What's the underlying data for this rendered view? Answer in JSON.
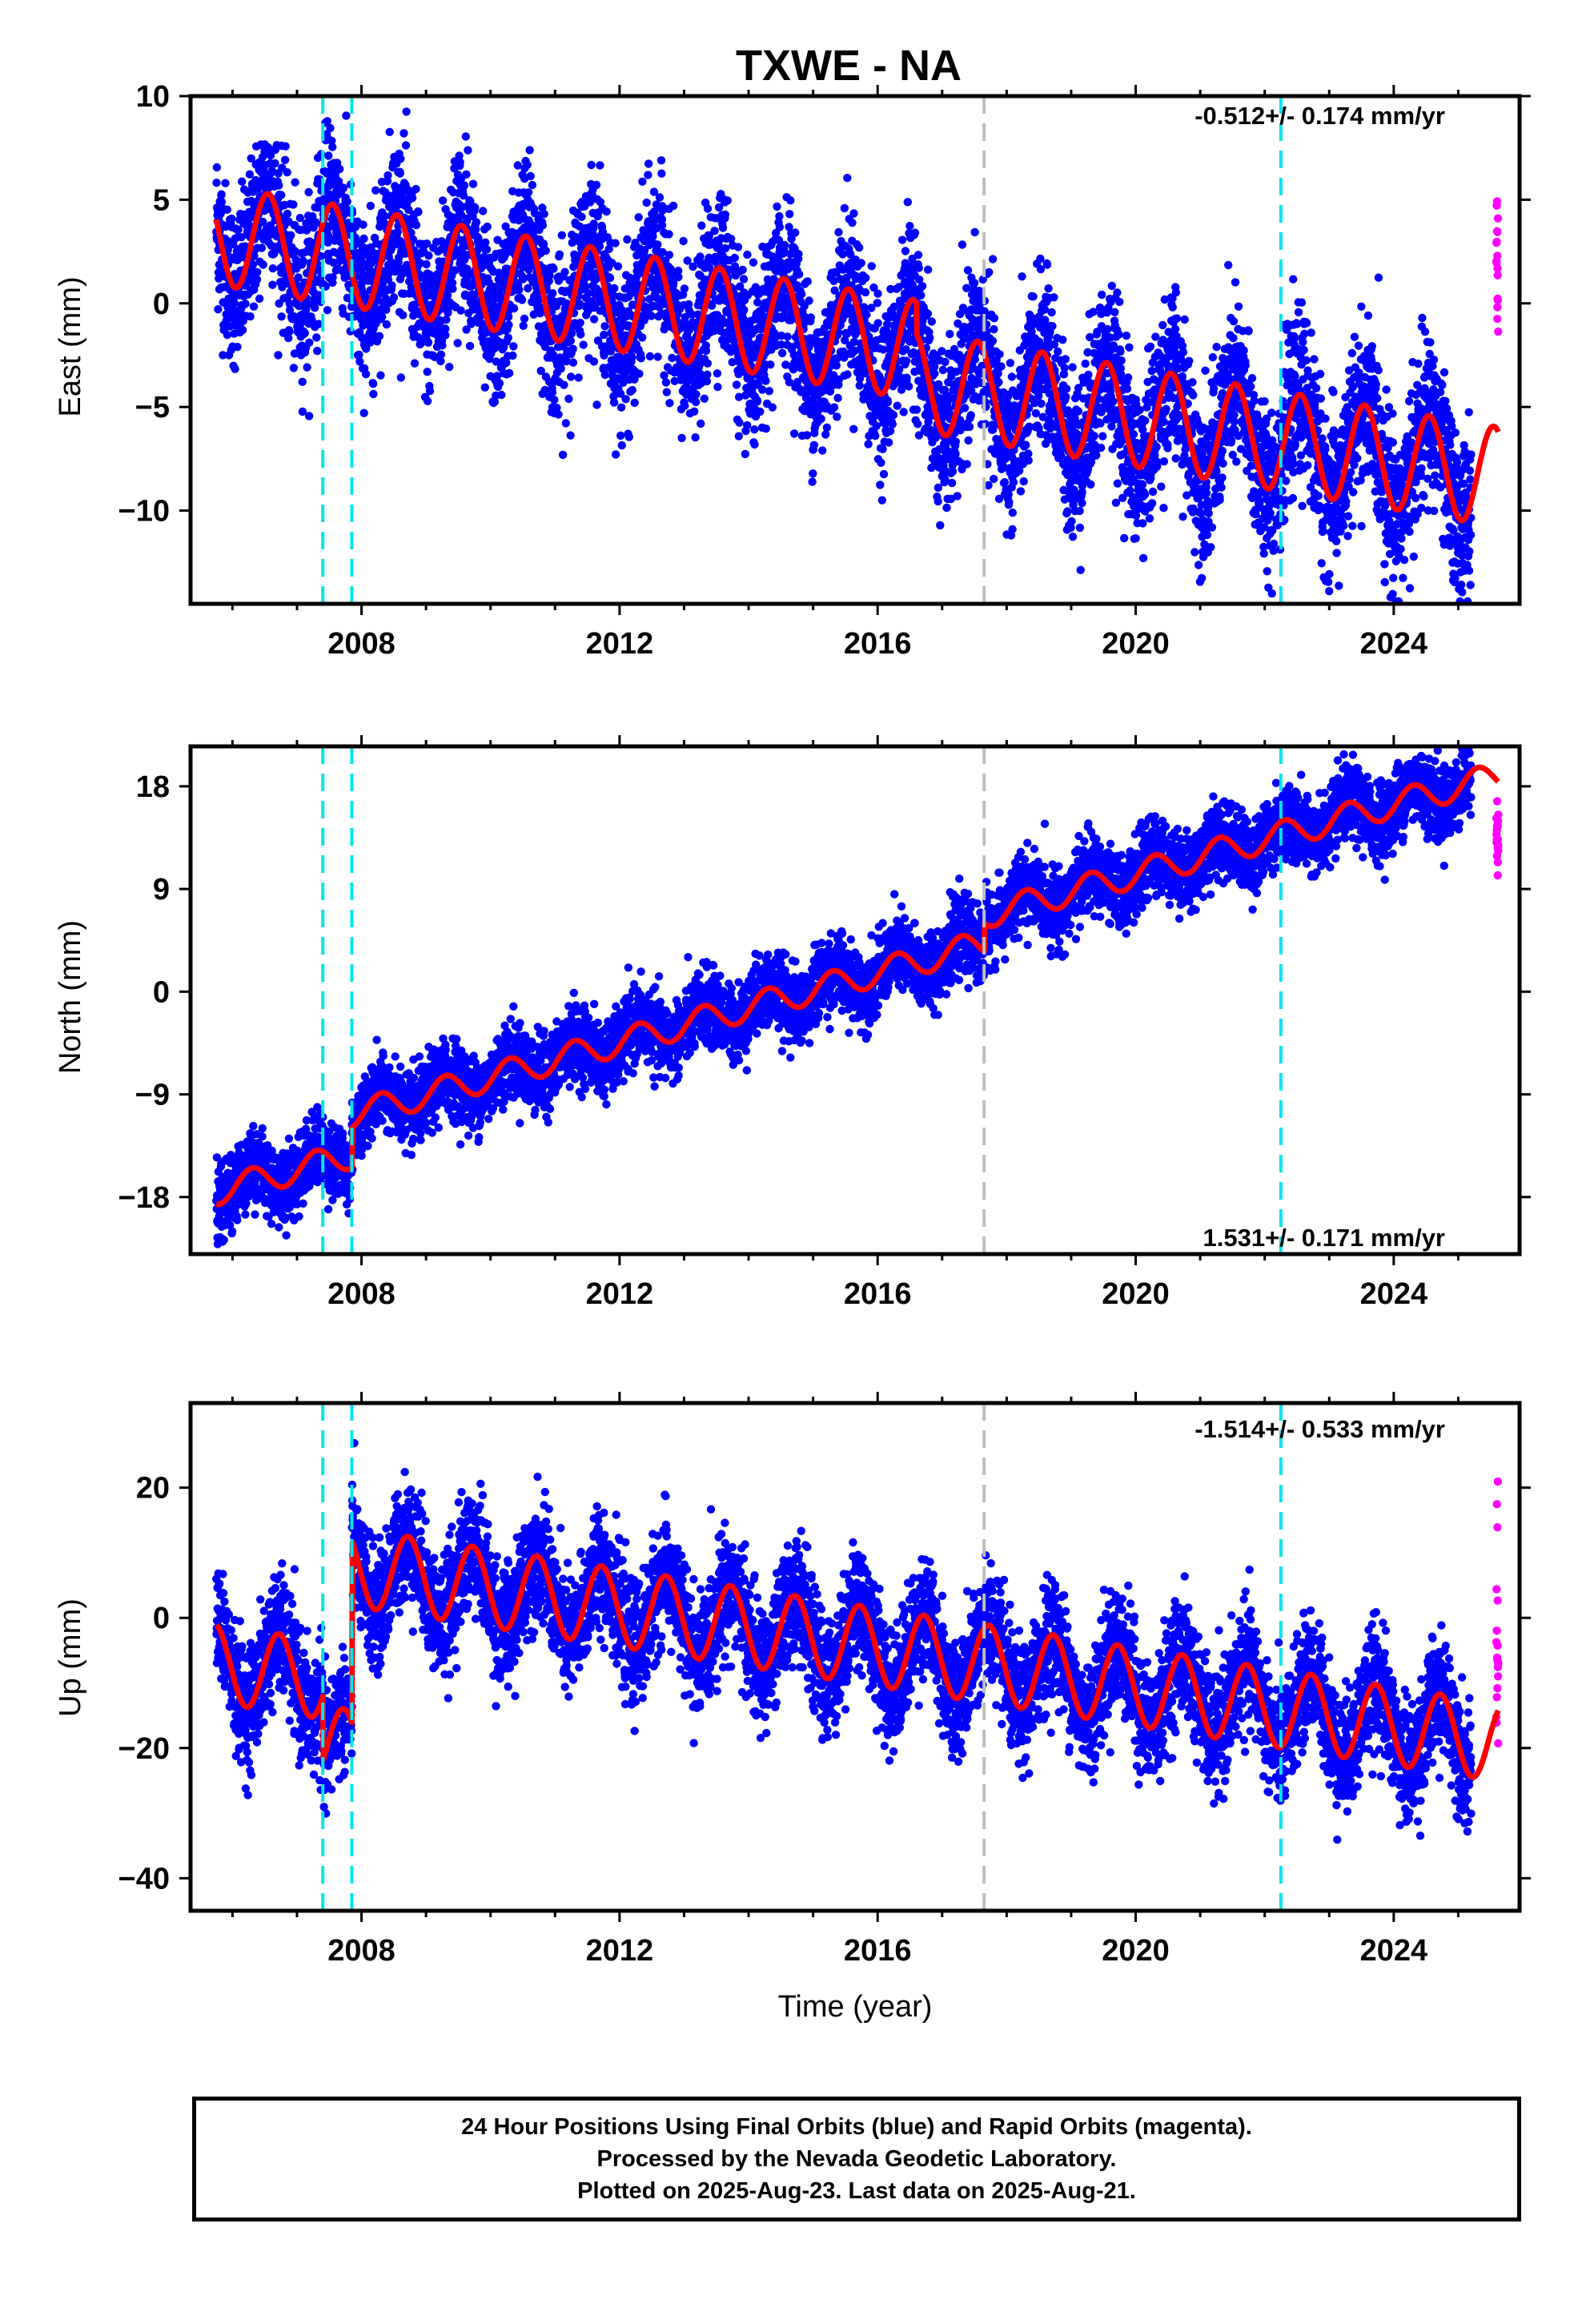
{
  "title": "TXWE - NA",
  "x_axis_label": "Time (year)",
  "caption": [
    "24 Hour Positions Using Final Orbits (blue) and Rapid Orbits (magenta).",
    "Processed by the Nevada Geodetic Laboratory.",
    "Plotted on 2025-Aug-23. Last data on 2025-Aug-21."
  ],
  "colors": {
    "final_orbits": "#0000ff",
    "rapid_orbits": "#ff00ff",
    "model_fit": "#ff0000",
    "equipment_change": "#00e5ee",
    "event": "#bebebe"
  },
  "chart_data": [
    {
      "type": "scatter",
      "ylabel": "East (mm)",
      "rate_text": "-0.512+/- 0.174 mm/yr",
      "rate_position": "top-right",
      "xlim": [
        2005.35,
        2025.95
      ],
      "ylim": [
        -14.5,
        10
      ],
      "x_ticks": [
        2008,
        2012,
        2016,
        2020,
        2024
      ],
      "y_ticks": [
        -10,
        -5,
        0,
        5,
        10
      ],
      "equipment_change_lines": [
        2007.4,
        2007.85,
        2022.25
      ],
      "event_lines": [
        2017.65
      ],
      "data_span": [
        2005.75,
        2025.2
      ],
      "rapid_span": [
        2025.2,
        2025.62
      ],
      "trend": {
        "value_at_2005_75": 3.3,
        "rate": -0.512,
        "offsets": [
          {
            "x": 2016.6,
            "dy": -1.5
          }
        ]
      },
      "seasonal": {
        "amplitude": 2.4,
        "peak_phase": 0.55
      },
      "scatter_sigma": 1.9,
      "rapid_range": [
        -1.5,
        6.3
      ]
    },
    {
      "type": "scatter",
      "ylabel": "North (mm)",
      "rate_text": "1.531+/- 0.171 mm/yr",
      "rate_position": "bottom-right",
      "xlim": [
        2005.35,
        2025.95
      ],
      "ylim": [
        -23,
        21.5
      ],
      "x_ticks": [
        2008,
        2012,
        2016,
        2020,
        2024
      ],
      "y_ticks": [
        -18,
        -9,
        0,
        9,
        18
      ],
      "equipment_change_lines": [
        2007.4,
        2007.85,
        2022.25
      ],
      "event_lines": [
        2017.65
      ],
      "data_span": [
        2005.75,
        2025.2
      ],
      "rapid_span": [
        2025.2,
        2025.62
      ],
      "trend": {
        "value_at_2005_75": -17.5,
        "rate": 1.531,
        "offsets": [
          {
            "x": 2007.85,
            "dy": 3.5
          },
          {
            "x": 2017.65,
            "dy": 2.5
          }
        ]
      },
      "seasonal": {
        "amplitude": 1.2,
        "peak_phase": 0.3
      },
      "scatter_sigma": 1.6,
      "rapid_range": [
        9.5,
        16.8
      ]
    },
    {
      "type": "scatter",
      "ylabel": "Up (mm)",
      "rate_text": "-1.514+/- 0.533 mm/yr",
      "rate_position": "top-right",
      "xlim": [
        2005.35,
        2025.95
      ],
      "ylim": [
        -45,
        33
      ],
      "x_ticks": [
        2008,
        2012,
        2016,
        2020,
        2024
      ],
      "y_ticks": [
        -40,
        -20,
        0,
        20
      ],
      "equipment_change_lines": [
        2007.4,
        2007.85,
        2022.25
      ],
      "event_lines": [
        2017.65
      ],
      "data_span": [
        2005.75,
        2025.2
      ],
      "rapid_span": [
        2025.2,
        2025.62
      ],
      "trend": {
        "value_at_2005_75": -7,
        "rate": -1.514,
        "offsets": [
          {
            "x": 2007.4,
            "dy": -10
          },
          {
            "x": 2007.85,
            "dy": 28
          }
        ]
      },
      "seasonal": {
        "amplitude": 6,
        "peak_phase": 0.72
      },
      "scatter_sigma": 4.5,
      "rapid_range": [
        -20,
        22
      ]
    }
  ]
}
